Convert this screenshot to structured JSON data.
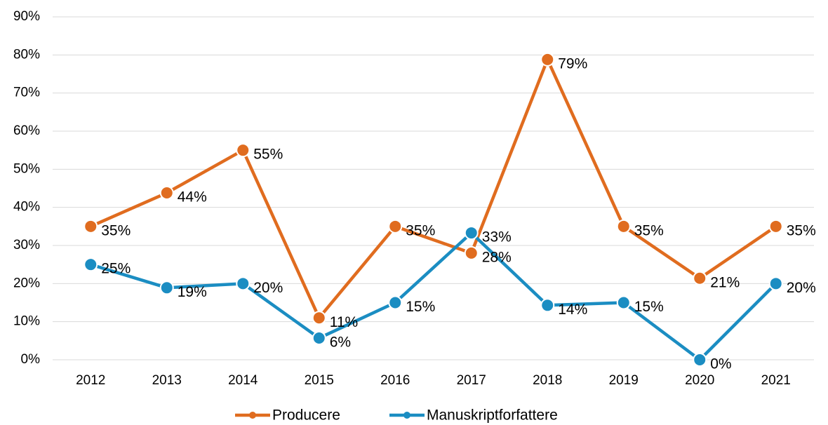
{
  "chart_data": {
    "type": "line",
    "categories": [
      "2012",
      "2013",
      "2014",
      "2015",
      "2016",
      "2017",
      "2018",
      "2019",
      "2020",
      "2021"
    ],
    "series": [
      {
        "name": "Producere",
        "color": "#e06c1f",
        "values": [
          35,
          43.8,
          55,
          11,
          35,
          28,
          78.8,
          35,
          21.4,
          35
        ],
        "value_labels": [
          "35%",
          "44%",
          "55%",
          "11%",
          "35%",
          "28%",
          "79%",
          "35%",
          "21%",
          "35%"
        ]
      },
      {
        "name": "Manuskriptforfattere",
        "color": "#1b8dc2",
        "values": [
          25,
          18.9,
          20,
          5.7,
          15,
          33.3,
          14.3,
          15,
          0,
          20
        ],
        "value_labels": [
          "25%",
          "19%",
          "20%",
          "6%",
          "15%",
          "33%",
          "14%",
          "15%",
          "0%",
          "20%"
        ]
      }
    ],
    "ylim": [
      0,
      90
    ],
    "yticks": [
      {
        "value": 0,
        "label": "0%"
      },
      {
        "value": 10,
        "label": "10%"
      },
      {
        "value": 20,
        "label": "20%"
      },
      {
        "value": 30,
        "label": "30%"
      },
      {
        "value": 40,
        "label": "40%"
      },
      {
        "value": 50,
        "label": "50%"
      },
      {
        "value": 60,
        "label": "60%"
      },
      {
        "value": 70,
        "label": "70%"
      },
      {
        "value": 80,
        "label": "80%"
      },
      {
        "value": 90,
        "label": "90%"
      }
    ],
    "grid": true,
    "legend": "bottom"
  }
}
